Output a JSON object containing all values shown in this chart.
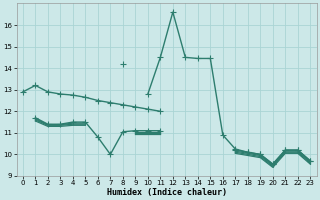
{
  "xlabel": "Humidex (Indice chaleur)",
  "color": "#2d7d6e",
  "bg_color": "#cce8e8",
  "grid_color": "#aad4d4",
  "ylim": [
    9,
    17
  ],
  "yticks": [
    9,
    10,
    11,
    12,
    13,
    14,
    15,
    16
  ],
  "xlim": [
    -0.5,
    23.5
  ],
  "xticks": [
    0,
    1,
    2,
    3,
    4,
    5,
    6,
    7,
    8,
    9,
    10,
    11,
    12,
    13,
    14,
    15,
    16,
    17,
    18,
    19,
    20,
    21,
    22,
    23
  ],
  "marker": "+",
  "markersize": 4,
  "linewidth": 1.0,
  "line_spike": [
    null,
    null,
    null,
    null,
    null,
    null,
    null,
    null,
    14.2,
    null,
    12.8,
    14.5,
    16.6,
    14.5,
    14.45,
    14.45,
    10.9,
    10.25,
    10.1,
    10.0,
    9.55,
    10.2,
    10.2,
    9.7
  ],
  "line_top": [
    12.9,
    13.2,
    null,
    null,
    null,
    null,
    null,
    null,
    null,
    null,
    12.5,
    null,
    null,
    null,
    null,
    null,
    null,
    null,
    null,
    null,
    null,
    null,
    null,
    null
  ],
  "line_top2": [
    12.9,
    13.2,
    12.9,
    12.8,
    12.75,
    12.65,
    12.5,
    12.4,
    12.3,
    12.2,
    12.1,
    12.0,
    null,
    null,
    null,
    null,
    null,
    null,
    null,
    null,
    null,
    null,
    null,
    null
  ],
  "line_mid1": [
    null,
    11.7,
    11.4,
    11.4,
    11.5,
    11.5,
    10.8,
    10.0,
    11.05,
    11.1,
    11.1,
    11.1,
    null,
    null,
    null,
    null,
    null,
    10.2,
    10.1,
    10.0,
    9.55,
    10.2,
    10.2,
    9.7
  ],
  "line_mid2": [
    null,
    11.65,
    11.38,
    11.38,
    11.45,
    11.45,
    null,
    null,
    null,
    11.05,
    11.05,
    11.05,
    null,
    null,
    null,
    null,
    null,
    10.15,
    10.05,
    9.95,
    9.5,
    10.15,
    10.15,
    9.65
  ],
  "line_mid3": [
    null,
    11.6,
    11.35,
    11.35,
    11.4,
    11.4,
    null,
    null,
    null,
    11.0,
    11.0,
    11.0,
    null,
    null,
    null,
    null,
    null,
    10.1,
    10.0,
    9.9,
    9.45,
    10.1,
    10.1,
    9.6
  ],
  "line_mid4": [
    null,
    11.55,
    11.3,
    11.3,
    11.35,
    11.35,
    null,
    null,
    null,
    10.95,
    10.95,
    10.95,
    null,
    null,
    null,
    null,
    null,
    10.05,
    9.95,
    9.85,
    9.4,
    10.05,
    10.05,
    9.55
  ]
}
